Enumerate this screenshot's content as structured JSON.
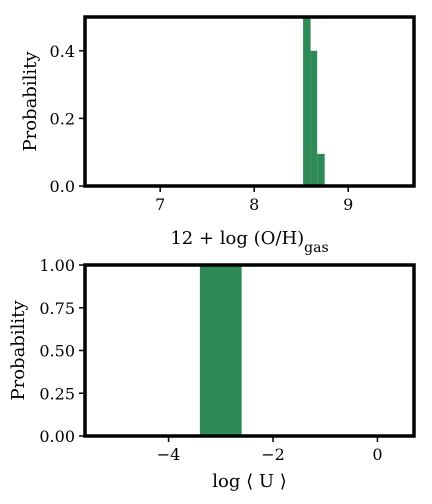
{
  "colors": {
    "bar": "#2e8b57",
    "frame": "#000000"
  },
  "chart_data": [
    {
      "type": "bar",
      "xlabel": "12 + log (O/H)",
      "xlabel_sub": "gas",
      "ylabel": "Probability",
      "xlim": [
        6.2,
        9.7
      ],
      "ylim": [
        0.0,
        0.5
      ],
      "xticks": [
        7,
        8,
        9
      ],
      "yticks": [
        0.0,
        0.2,
        0.4
      ],
      "ytick_labels": [
        "0.0",
        "0.2",
        "0.4"
      ],
      "grid": false,
      "bins": [
        {
          "x0": 8.52,
          "x1": 8.6,
          "value": 0.5
        },
        {
          "x0": 8.6,
          "x1": 8.67,
          "value": 0.4
        },
        {
          "x0": 8.67,
          "x1": 8.75,
          "value": 0.095
        }
      ]
    },
    {
      "type": "bar",
      "xlabel": "log ⟨ U ⟩",
      "ylabel": "Probability",
      "xlim": [
        -5.6,
        0.7
      ],
      "ylim": [
        0.0,
        1.0
      ],
      "xticks": [
        -4,
        -2,
        0
      ],
      "xtick_labels": [
        "−4",
        "−2",
        "0"
      ],
      "yticks": [
        0.0,
        0.25,
        0.5,
        0.75,
        1.0
      ],
      "ytick_labels": [
        "0.00",
        "0.25",
        "0.50",
        "0.75",
        "1.00"
      ],
      "grid": false,
      "bins": [
        {
          "x0": -3.4,
          "x1": -2.6,
          "value": 1.0
        }
      ]
    }
  ]
}
